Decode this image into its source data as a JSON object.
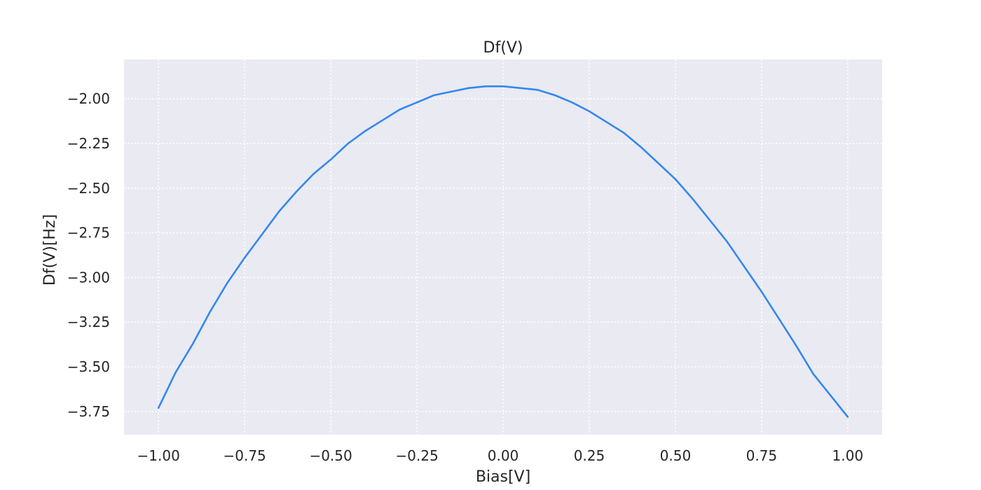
{
  "chart_data": {
    "type": "line",
    "title": "Df(V)",
    "xlabel": "Bias[V]",
    "ylabel": "Df(V)[Hz]",
    "xlim": [
      -1.1,
      1.1
    ],
    "ylim": [
      -3.88,
      -1.78
    ],
    "xticks": [
      -1.0,
      -0.75,
      -0.5,
      -0.25,
      0.0,
      0.25,
      0.5,
      0.75,
      1.0
    ],
    "xtick_labels": [
      "−1.00",
      "−0.75",
      "−0.50",
      "−0.25",
      "0.00",
      "0.25",
      "0.50",
      "0.75",
      "1.00"
    ],
    "yticks": [
      -2.0,
      -2.25,
      -2.5,
      -2.75,
      -3.0,
      -3.25,
      -3.5,
      -3.75
    ],
    "ytick_labels": [
      "−2.00",
      "−2.25",
      "−2.50",
      "−2.75",
      "−3.00",
      "−3.25",
      "−3.50",
      "−3.75"
    ],
    "grid": true,
    "legend": "none",
    "series": [
      {
        "color": "#3388ee",
        "x": [
          -1.0,
          -0.95,
          -0.9,
          -0.85,
          -0.8,
          -0.75,
          -0.7,
          -0.65,
          -0.6,
          -0.55,
          -0.5,
          -0.45,
          -0.4,
          -0.35,
          -0.3,
          -0.25,
          -0.2,
          -0.15,
          -0.1,
          -0.05,
          0.0,
          0.05,
          0.1,
          0.15,
          0.2,
          0.25,
          0.3,
          0.35,
          0.4,
          0.45,
          0.5,
          0.55,
          0.6,
          0.65,
          0.7,
          0.75,
          0.8,
          0.85,
          0.9,
          0.95,
          1.0
        ],
        "y": [
          -3.73,
          -3.53,
          -3.37,
          -3.19,
          -3.03,
          -2.89,
          -2.76,
          -2.63,
          -2.52,
          -2.42,
          -2.34,
          -2.25,
          -2.18,
          -2.12,
          -2.06,
          -2.02,
          -1.98,
          -1.96,
          -1.94,
          -1.93,
          -1.93,
          -1.94,
          -1.95,
          -1.98,
          -2.02,
          -2.07,
          -2.13,
          -2.19,
          -2.27,
          -2.36,
          -2.45,
          -2.56,
          -2.68,
          -2.8,
          -2.94,
          -3.08,
          -3.23,
          -3.38,
          -3.54,
          -3.66,
          -3.78
        ]
      }
    ]
  },
  "colors": {
    "plot_background": "#eaeaf2",
    "grid": "#ffffff",
    "line": "#3388ee",
    "text": "#262626"
  }
}
